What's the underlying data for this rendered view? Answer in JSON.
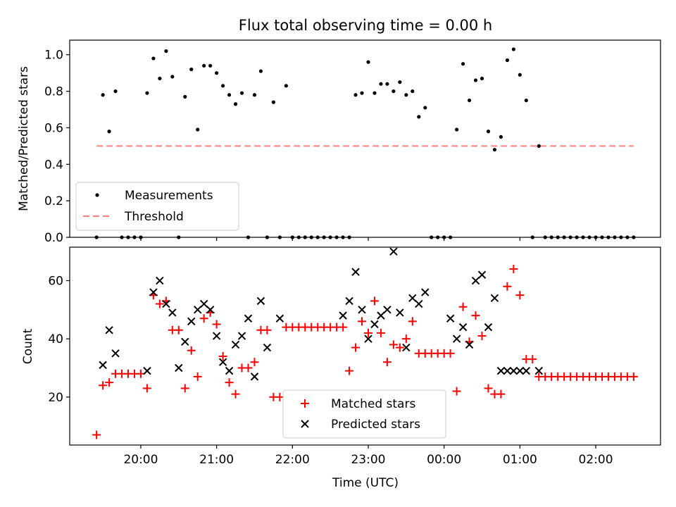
{
  "figure": {
    "title": "Flux total observing time = 0.00 h",
    "xlabel": "Time (UTC)",
    "xticks": [
      "20:00",
      "21:00",
      "22:00",
      "23:00",
      "00:00",
      "01:00",
      "02:00"
    ]
  },
  "chart_data": [
    {
      "type": "scatter",
      "title": "Flux total observing time = 0.00 h",
      "ylabel": "Matched/Predicted stars",
      "ylim": [
        0,
        1.08
      ],
      "yticks": [
        "0.0",
        "0.2",
        "0.4",
        "0.6",
        "0.8",
        "1.0"
      ],
      "legend": {
        "placement": "lower-left",
        "entries": [
          "Measurements",
          "Threshold"
        ]
      },
      "colors": {
        "measurements": "#000000",
        "threshold": "#ff7f7f"
      },
      "threshold": {
        "name": "Threshold",
        "y": 0.5,
        "x_range": [
          "19:25",
          "02:30"
        ]
      },
      "series": [
        {
          "name": "Measurements",
          "marker": "dot",
          "x": [
            "19:25",
            "19:30",
            "19:35",
            "19:40",
            "19:45",
            "19:50",
            "19:55",
            "20:00",
            "20:05",
            "20:10",
            "20:15",
            "20:20",
            "20:25",
            "20:30",
            "20:35",
            "20:40",
            "20:45",
            "20:50",
            "20:55",
            "21:00",
            "21:05",
            "21:10",
            "21:15",
            "21:20",
            "21:25",
            "21:30",
            "21:35",
            "21:40",
            "21:45",
            "21:50",
            "21:55",
            "22:00",
            "22:05",
            "22:10",
            "22:15",
            "22:20",
            "22:25",
            "22:30",
            "22:35",
            "22:40",
            "22:45",
            "22:50",
            "22:55",
            "23:00",
            "23:05",
            "23:10",
            "23:15",
            "23:20",
            "23:25",
            "23:30",
            "23:35",
            "23:40",
            "23:45",
            "23:50",
            "23:55",
            "00:00",
            "00:05",
            "00:10",
            "00:15",
            "00:20",
            "00:25",
            "00:30",
            "00:35",
            "00:40",
            "00:45",
            "00:50",
            "00:55",
            "01:00",
            "01:05",
            "01:10",
            "01:15",
            "01:20",
            "01:25",
            "01:30",
            "01:35",
            "01:40",
            "01:45",
            "01:50",
            "01:55",
            "02:00",
            "02:05",
            "02:10",
            "02:15",
            "02:20",
            "02:25",
            "02:30"
          ],
          "y": [
            0.0,
            0.78,
            0.58,
            0.8,
            0.0,
            0.0,
            0.0,
            0.0,
            0.79,
            0.98,
            0.87,
            1.02,
            0.88,
            0.0,
            0.77,
            0.92,
            0.59,
            0.94,
            0.94,
            0.9,
            0.83,
            0.78,
            0.73,
            0.79,
            0.0,
            0.78,
            0.91,
            0.0,
            0.74,
            0.0,
            0.83,
            0.0,
            0.0,
            0.0,
            0.0,
            0.0,
            0.0,
            0.0,
            0.0,
            0.0,
            0.0,
            0.78,
            0.79,
            0.96,
            0.79,
            0.84,
            0.84,
            0.8,
            0.85,
            0.78,
            0.8,
            0.66,
            0.71,
            0.0,
            0.0,
            0.0,
            0.0,
            0.59,
            0.95,
            0.75,
            0.86,
            0.87,
            0.58,
            0.48,
            0.55,
            0.97,
            1.03,
            0.89,
            0.75,
            0.0,
            0.5,
            0.0,
            0.0,
            0.0,
            0.0,
            0.0,
            0.0,
            0.0,
            0.0,
            0.0,
            0.0,
            0.0,
            0.0,
            0.0,
            0.0,
            0.0
          ]
        }
      ]
    },
    {
      "type": "scatter",
      "ylabel": "Count",
      "ylim": [
        3.5,
        71.5
      ],
      "yticks": [
        "20",
        "40",
        "60"
      ],
      "legend": {
        "placement": "lower-center",
        "entries": [
          "Matched stars",
          "Predicted stars"
        ]
      },
      "colors": {
        "matched": "#ff0000",
        "predicted": "#000000"
      },
      "series": [
        {
          "name": "Matched stars",
          "marker": "plus",
          "x": [
            "19:25",
            "19:30",
            "19:35",
            "19:40",
            "19:45",
            "19:50",
            "19:55",
            "20:00",
            "20:05",
            "20:10",
            "20:15",
            "20:20",
            "20:25",
            "20:30",
            "20:35",
            "20:40",
            "20:45",
            "20:50",
            "20:55",
            "21:00",
            "21:05",
            "21:10",
            "21:15",
            "21:20",
            "21:25",
            "21:30",
            "21:35",
            "21:40",
            "21:45",
            "21:50",
            "21:55",
            "22:00",
            "22:05",
            "22:10",
            "22:15",
            "22:20",
            "22:25",
            "22:30",
            "22:35",
            "22:40",
            "22:45",
            "22:50",
            "22:55",
            "23:00",
            "23:05",
            "23:10",
            "23:15",
            "23:20",
            "23:25",
            "23:30",
            "23:35",
            "23:40",
            "23:45",
            "23:50",
            "23:55",
            "00:00",
            "00:05",
            "00:10",
            "00:15",
            "00:20",
            "00:25",
            "00:30",
            "00:35",
            "00:40",
            "00:45",
            "00:50",
            "00:55",
            "01:00",
            "01:05",
            "01:10",
            "01:15",
            "01:20",
            "01:25",
            "01:30",
            "01:35",
            "01:40",
            "01:45",
            "01:50",
            "01:55",
            "02:00",
            "02:05",
            "02:10",
            "02:15",
            "02:20",
            "02:25",
            "02:30"
          ],
          "y": [
            7,
            24,
            25,
            28,
            28,
            28,
            28,
            28,
            23,
            55,
            52,
            53,
            43,
            43,
            23,
            36,
            27,
            47,
            49,
            45,
            34,
            25,
            21,
            30,
            30,
            32,
            43,
            43,
            20,
            20,
            44,
            44,
            44,
            44,
            44,
            44,
            44,
            44,
            44,
            44,
            29,
            37,
            46,
            42,
            53,
            42,
            32,
            38,
            37,
            40,
            46,
            35,
            35,
            35,
            35,
            35,
            35,
            22,
            51,
            39,
            48,
            41,
            23,
            21,
            21,
            58,
            64,
            55,
            33,
            33,
            27,
            27,
            27,
            27,
            27,
            27,
            27,
            27,
            27,
            27,
            27,
            27,
            27,
            27,
            27,
            27
          ]
        },
        {
          "name": "Predicted stars",
          "marker": "x",
          "x": [
            "19:30",
            "19:35",
            "19:40",
            "20:05",
            "20:10",
            "20:15",
            "20:20",
            "20:25",
            "20:30",
            "20:35",
            "20:40",
            "20:45",
            "20:50",
            "20:55",
            "21:00",
            "21:05",
            "21:10",
            "21:15",
            "21:20",
            "21:25",
            "21:30",
            "21:35",
            "21:40",
            "21:50",
            "22:40",
            "22:45",
            "22:50",
            "22:55",
            "23:00",
            "23:05",
            "23:10",
            "23:15",
            "23:20",
            "23:25",
            "23:30",
            "23:35",
            "23:40",
            "23:45",
            "00:05",
            "00:10",
            "00:15",
            "00:20",
            "00:25",
            "00:30",
            "00:35",
            "00:40",
            "00:45",
            "00:50",
            "00:55",
            "01:00",
            "01:05",
            "01:15"
          ],
          "y": [
            31,
            43,
            35,
            29,
            56,
            60,
            52,
            49,
            30,
            39,
            46,
            50,
            52,
            50,
            41,
            32,
            29,
            38,
            41,
            47,
            27,
            53,
            37,
            47,
            48,
            53,
            63,
            50,
            40,
            45,
            48,
            50,
            70,
            49,
            37,
            54,
            52,
            56,
            47,
            40,
            44,
            38,
            60,
            62,
            44,
            54,
            29,
            29,
            29,
            29,
            29,
            29
          ]
        }
      ]
    }
  ]
}
